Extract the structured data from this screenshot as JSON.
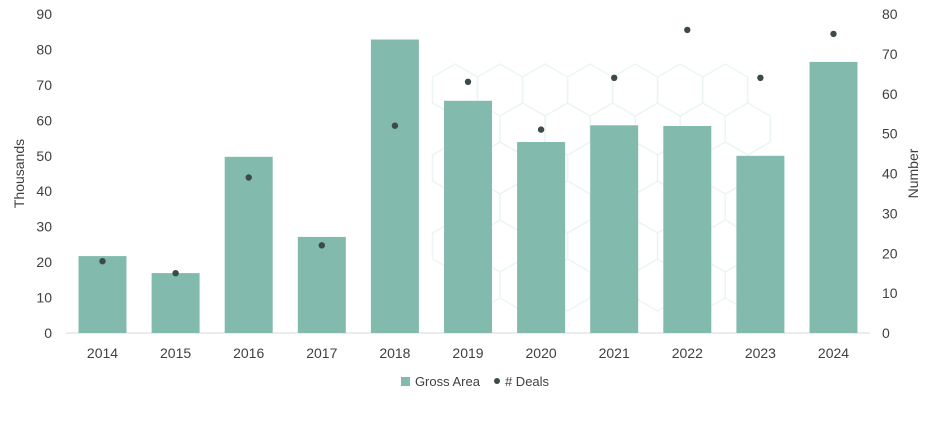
{
  "chart_data": {
    "type": "bar",
    "categories": [
      "2014",
      "2015",
      "2016",
      "2017",
      "2018",
      "2019",
      "2020",
      "2021",
      "2022",
      "2023",
      "2024"
    ],
    "series": [
      {
        "name": "Gross Area",
        "type": "bar",
        "axis": "left",
        "color": "#82bbad",
        "values": [
          21.7,
          16.9,
          49.7,
          27.1,
          82.8,
          65.5,
          53.9,
          58.6,
          58.4,
          50.0,
          76.5
        ]
      },
      {
        "name": "# Deals",
        "type": "scatter",
        "axis": "right",
        "color": "#3c4b47",
        "values": [
          18,
          15,
          39,
          22,
          52,
          63,
          51,
          64,
          76,
          64,
          75
        ]
      }
    ],
    "y_left": {
      "label": "Thousands",
      "ylim": [
        0,
        90
      ],
      "ticks": [
        "0",
        "10",
        "20",
        "30",
        "40",
        "50",
        "60",
        "70",
        "80",
        "90"
      ]
    },
    "y_right": {
      "label": "Number",
      "ylim": [
        0,
        80
      ],
      "ticks": [
        "0",
        "10",
        "20",
        "30",
        "40",
        "50",
        "60",
        "70",
        "80"
      ]
    },
    "grid": false,
    "legend_position": "bottom-center",
    "title": "",
    "xlabel": ""
  }
}
